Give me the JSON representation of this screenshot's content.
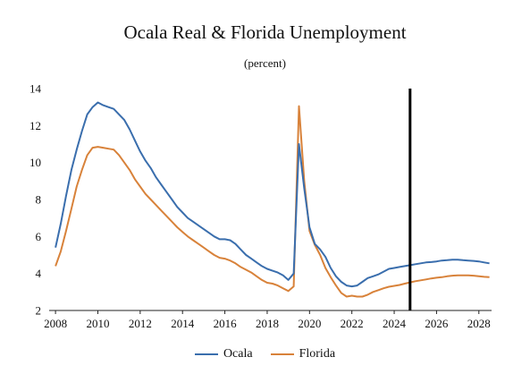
{
  "chart_data": {
    "type": "line",
    "title": "Ocala Real & Florida Unemployment",
    "subtitle": "(percent)",
    "xlabel": "",
    "ylabel": "",
    "xlim": [
      2007.7,
      2028.6
    ],
    "ylim": [
      2,
      14
    ],
    "yticks": [
      2,
      4,
      6,
      8,
      10,
      12,
      14
    ],
    "xticks": [
      2008,
      2010,
      2012,
      2014,
      2016,
      2018,
      2020,
      2022,
      2024,
      2026,
      2028
    ],
    "grid": false,
    "legend_position": "bottom",
    "forecast_line_x": 2024.75,
    "series": [
      {
        "name": "Ocala",
        "color": "#3a6ead",
        "x": [
          2008.0,
          2008.25,
          2008.5,
          2008.75,
          2009.0,
          2009.25,
          2009.5,
          2009.75,
          2010.0,
          2010.25,
          2010.5,
          2010.75,
          2011.0,
          2011.25,
          2011.5,
          2011.75,
          2012.0,
          2012.25,
          2012.5,
          2012.75,
          2013.0,
          2013.25,
          2013.5,
          2013.75,
          2014.0,
          2014.25,
          2014.5,
          2014.75,
          2015.0,
          2015.25,
          2015.5,
          2015.75,
          2016.0,
          2016.25,
          2016.5,
          2016.75,
          2017.0,
          2017.25,
          2017.5,
          2017.75,
          2018.0,
          2018.25,
          2018.5,
          2018.75,
          2019.0,
          2019.25,
          2019.5,
          2019.75,
          2020.0,
          2020.25,
          2020.5,
          2020.75,
          2021.0,
          2021.25,
          2021.5,
          2021.75,
          2022.0,
          2022.25,
          2022.5,
          2022.75,
          2023.0,
          2023.25,
          2023.5,
          2023.75,
          2024.0,
          2024.25,
          2024.5,
          2024.75,
          2025.0,
          2025.25,
          2025.5,
          2025.75,
          2026.0,
          2026.25,
          2026.5,
          2026.75,
          2027.0,
          2027.25,
          2027.5,
          2027.75,
          2028.0,
          2028.25,
          2028.5
        ],
        "values": [
          5.4,
          6.7,
          8.2,
          9.6,
          10.7,
          11.7,
          12.6,
          13.0,
          13.25,
          13.1,
          13.0,
          12.9,
          12.6,
          12.3,
          11.8,
          11.2,
          10.6,
          10.1,
          9.7,
          9.2,
          8.8,
          8.4,
          8.0,
          7.6,
          7.3,
          7.0,
          6.8,
          6.6,
          6.4,
          6.2,
          6.0,
          5.85,
          5.85,
          5.8,
          5.6,
          5.3,
          5.0,
          4.8,
          4.6,
          4.4,
          4.25,
          4.15,
          4.05,
          3.9,
          3.65,
          4.0,
          11.0,
          8.6,
          6.5,
          5.6,
          5.3,
          4.9,
          4.3,
          3.85,
          3.55,
          3.35,
          3.3,
          3.35,
          3.55,
          3.75,
          3.85,
          3.95,
          4.1,
          4.25,
          4.3,
          4.35,
          4.4,
          4.45,
          4.5,
          4.55,
          4.6,
          4.62,
          4.65,
          4.7,
          4.72,
          4.75,
          4.75,
          4.72,
          4.7,
          4.68,
          4.65,
          4.6,
          4.55
        ]
      },
      {
        "name": "Florida",
        "color": "#d8823a",
        "x": [
          2008.0,
          2008.25,
          2008.5,
          2008.75,
          2009.0,
          2009.25,
          2009.5,
          2009.75,
          2010.0,
          2010.25,
          2010.5,
          2010.75,
          2011.0,
          2011.25,
          2011.5,
          2011.75,
          2012.0,
          2012.25,
          2012.5,
          2012.75,
          2013.0,
          2013.25,
          2013.5,
          2013.75,
          2014.0,
          2014.25,
          2014.5,
          2014.75,
          2015.0,
          2015.25,
          2015.5,
          2015.75,
          2016.0,
          2016.25,
          2016.5,
          2016.75,
          2017.0,
          2017.25,
          2017.5,
          2017.75,
          2018.0,
          2018.25,
          2018.5,
          2018.75,
          2019.0,
          2019.25,
          2019.5,
          2019.75,
          2020.0,
          2020.25,
          2020.5,
          2020.75,
          2021.0,
          2021.25,
          2021.5,
          2021.75,
          2022.0,
          2022.25,
          2022.5,
          2022.75,
          2023.0,
          2023.25,
          2023.5,
          2023.75,
          2024.0,
          2024.25,
          2024.5,
          2024.75,
          2025.0,
          2025.25,
          2025.5,
          2025.75,
          2026.0,
          2026.25,
          2026.5,
          2026.75,
          2027.0,
          2027.25,
          2027.5,
          2027.75,
          2028.0,
          2028.25,
          2028.5
        ],
        "values": [
          4.4,
          5.2,
          6.3,
          7.5,
          8.7,
          9.6,
          10.4,
          10.8,
          10.85,
          10.8,
          10.75,
          10.7,
          10.4,
          10.0,
          9.6,
          9.1,
          8.7,
          8.3,
          8.0,
          7.7,
          7.4,
          7.1,
          6.8,
          6.5,
          6.25,
          6.0,
          5.8,
          5.6,
          5.4,
          5.2,
          5.0,
          4.85,
          4.8,
          4.7,
          4.55,
          4.35,
          4.2,
          4.05,
          3.85,
          3.65,
          3.5,
          3.45,
          3.35,
          3.2,
          3.05,
          3.3,
          13.05,
          9.0,
          6.3,
          5.55,
          5.0,
          4.3,
          3.8,
          3.35,
          2.95,
          2.75,
          2.8,
          2.75,
          2.75,
          2.85,
          3.0,
          3.1,
          3.2,
          3.28,
          3.33,
          3.38,
          3.45,
          3.52,
          3.58,
          3.63,
          3.68,
          3.73,
          3.77,
          3.8,
          3.85,
          3.88,
          3.9,
          3.9,
          3.9,
          3.88,
          3.85,
          3.82,
          3.8
        ]
      }
    ]
  }
}
